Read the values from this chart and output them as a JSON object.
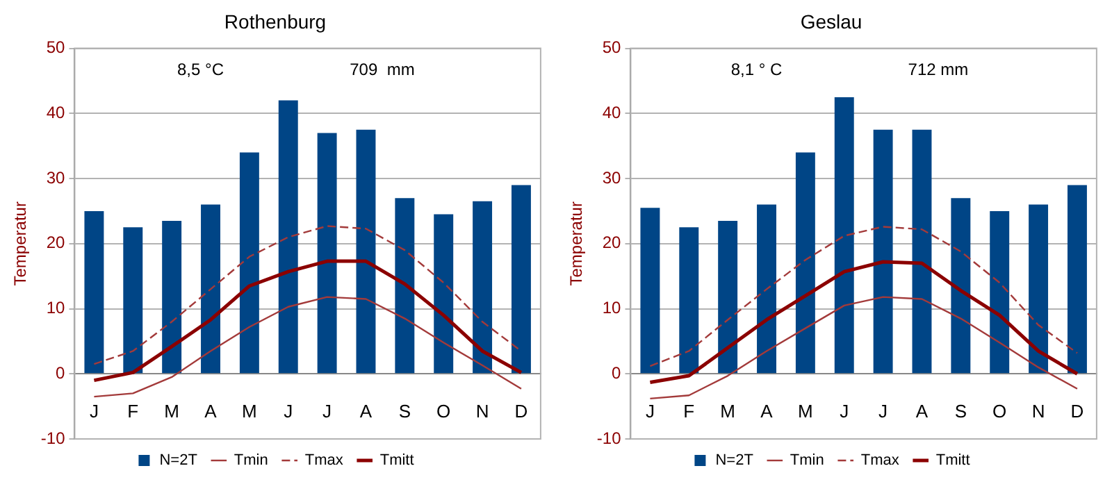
{
  "chart_data": [
    {
      "type": "bar",
      "title": "Rothenburg",
      "ylabel": "Temperatur",
      "annotations": [
        "8,5 °C",
        "709  mm"
      ],
      "categories": [
        "J",
        "F",
        "M",
        "A",
        "M",
        "J",
        "J",
        "A",
        "S",
        "O",
        "N",
        "D"
      ],
      "series": [
        {
          "name": "N=2T",
          "color": "#004586",
          "values": [
            25,
            22.5,
            23.5,
            26,
            34,
            42,
            37,
            37.5,
            27,
            24.5,
            26.5,
            29
          ]
        },
        {
          "name": "Tmin",
          "type": "line",
          "color": "#a33a3a",
          "values": [
            -3.5,
            -3,
            -0.5,
            3.5,
            7.2,
            10.3,
            11.8,
            11.5,
            8.5,
            4.8,
            1.3,
            -2.3
          ]
        },
        {
          "name": "Tmax",
          "type": "line",
          "color": "#a33a3a",
          "line_style": "dashed",
          "values": [
            1.5,
            3.5,
            8,
            13,
            18,
            21,
            22.7,
            22.3,
            19,
            14,
            8,
            3.5
          ]
        },
        {
          "name": "Tmitt",
          "type": "line",
          "color": "#8b0000",
          "values": [
            -1,
            0.2,
            4.2,
            8.3,
            13.5,
            15.7,
            17.3,
            17.3,
            13.8,
            9,
            3.5,
            0.2
          ]
        }
      ],
      "ylim": [
        -10,
        50
      ],
      "yticks": [
        -10,
        0,
        10,
        20,
        30,
        40,
        50
      ],
      "grid": "y",
      "legend": "bottom",
      "marker": "none"
    },
    {
      "type": "bar",
      "title": "Geslau",
      "ylabel": "Temperatur",
      "annotations": [
        "8,1 ° C",
        "712 mm"
      ],
      "categories": [
        "J",
        "F",
        "M",
        "A",
        "M",
        "J",
        "J",
        "A",
        "S",
        "O",
        "N",
        "D"
      ],
      "series": [
        {
          "name": "N=2T",
          "color": "#004586",
          "values": [
            25.5,
            22.5,
            23.5,
            26,
            34,
            42.5,
            37.5,
            37.5,
            27,
            25,
            26,
            29
          ]
        },
        {
          "name": "Tmin",
          "type": "line",
          "color": "#a33a3a",
          "values": [
            -3.8,
            -3.3,
            -0.3,
            3.5,
            7,
            10.5,
            11.8,
            11.5,
            8.5,
            4.8,
            1,
            -2.3
          ]
        },
        {
          "name": "Tmax",
          "type": "line",
          "color": "#a33a3a",
          "line_style": "dashed",
          "values": [
            1.2,
            3.5,
            8.3,
            13,
            17.5,
            21.2,
            22.6,
            22.2,
            18.8,
            14,
            7.5,
            3.2
          ]
        },
        {
          "name": "Tmitt",
          "type": "line",
          "color": "#8b0000",
          "values": [
            -1.3,
            -0.3,
            4,
            8.3,
            12,
            15.7,
            17.2,
            17,
            12.8,
            9,
            3.5,
            0
          ]
        }
      ],
      "ylim": [
        -10,
        50
      ],
      "yticks": [
        -10,
        0,
        10,
        20,
        30,
        40,
        50
      ],
      "grid": "y",
      "legend": "bottom",
      "marker": "none"
    }
  ]
}
